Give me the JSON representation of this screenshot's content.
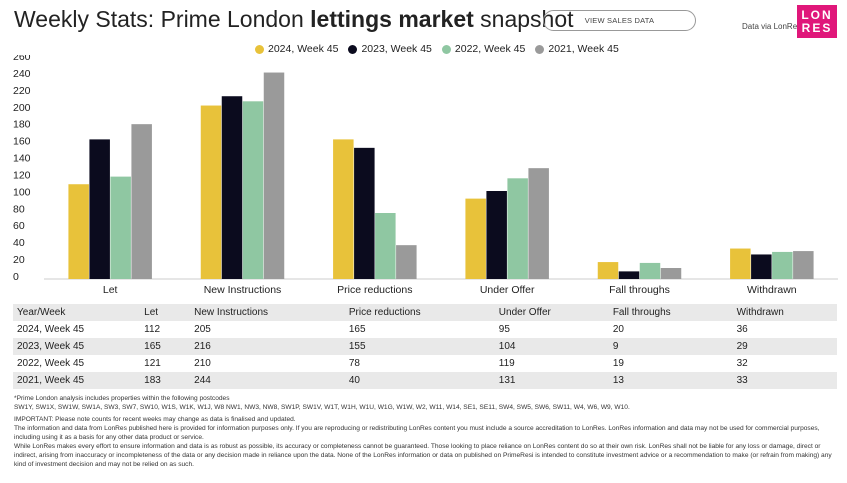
{
  "header": {
    "title_pre": "Weekly Stats: Prime London ",
    "title_bold": "lettings market",
    "title_post": " snapshot",
    "button_label": "VIEW SALES DATA",
    "via_label": "Data via LonRes",
    "logo_line1": "LON",
    "logo_line2": "RES",
    "logo_color": "#e0177a"
  },
  "chart_data": {
    "type": "bar",
    "categories": [
      "Let",
      "New Instructions",
      "Price reductions",
      "Under Offer",
      "Fall throughs",
      "Withdrawn"
    ],
    "series": [
      {
        "name": "2024, Week 45",
        "color": "#e8c23a",
        "values": [
          112,
          205,
          165,
          95,
          20,
          36
        ]
      },
      {
        "name": "2023, Week 45",
        "color": "#0b0b1e",
        "values": [
          165,
          216,
          155,
          104,
          9,
          29
        ]
      },
      {
        "name": "2022, Week 45",
        "color": "#8fc7a2",
        "values": [
          121,
          210,
          78,
          119,
          19,
          32
        ]
      },
      {
        "name": "2021, Week 45",
        "color": "#9a9a9a",
        "values": [
          183,
          244,
          40,
          131,
          13,
          33
        ]
      }
    ],
    "yticks": [
      0,
      20,
      40,
      60,
      80,
      100,
      120,
      140,
      160,
      180,
      200,
      220,
      240,
      260
    ],
    "ylim": [
      0,
      260
    ],
    "legend_position": "top-center"
  },
  "table": {
    "headers": [
      "Year/Week",
      "Let",
      "New Instructions",
      "Price reductions",
      "Under Offer",
      "Fall throughs",
      "Withdrawn"
    ],
    "rows": [
      [
        "2024, Week 45",
        "112",
        "205",
        "165",
        "95",
        "20",
        "36"
      ],
      [
        "2023, Week 45",
        "165",
        "216",
        "155",
        "104",
        "9",
        "29"
      ],
      [
        "2022, Week 45",
        "121",
        "210",
        "78",
        "119",
        "19",
        "32"
      ],
      [
        "2021, Week 45",
        "183",
        "244",
        "40",
        "131",
        "13",
        "33"
      ]
    ]
  },
  "notes": {
    "postcodes_intro": "*Prime London analysis includes properties within the following postcodes",
    "postcodes": "SW1Y, SW1X, SW1W, SW1A, SW3, SW7, SW10, W1S, W1K, W1J, W8 NW1, NW3, NW8, SW1P, SW1V, W1T, W1H, W1U, W1G, W1W, W2, W11, W14, SE1, SE11, SW4, SW5, SW6, SW11, W4, W6, W9, W10.",
    "important": "IMPORTANT: Please note counts for recent weeks may change as data is finalised and updated.",
    "info": "The information and data from LonRes published here is provided for information purposes only. If you are reproducing or redistributing LonRes content you must include a source accreditation to LonRes. LonRes information and data may not be used for commercial purposes, including using it as a basis for any other data product or service.",
    "disclaimer": "While LonRes makes every effort to ensure information and data is as robust as possible, its accuracy or completeness cannot be guaranteed. Those looking to place reliance on LonRes content do so at their own risk. LonRes shall not be liable for any loss or damage, direct or indirect, arising from inaccuracy or incompleteness of the data or any decision made in reliance upon the data. None of the LonRes information or data on published on PrimeResi is intended to constitute investment advice or a recommendation to make (or refrain from making) any kind of investment decision and may not be relied on as such."
  }
}
